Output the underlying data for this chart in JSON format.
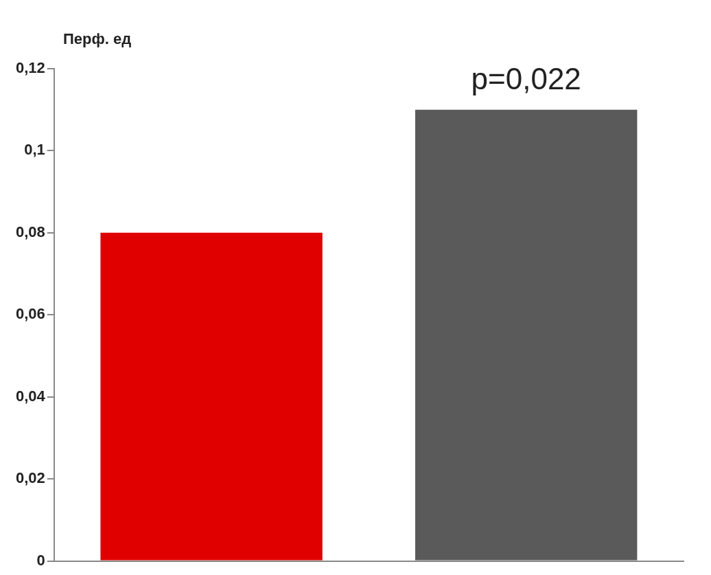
{
  "chart_data": {
    "type": "bar",
    "ylabel": "Перф. ед",
    "categories": [
      null,
      null
    ],
    "values": [
      0.08,
      0.11
    ],
    "colors": [
      "#e00000",
      "#5a5a5a"
    ],
    "ylim": [
      0,
      0.12
    ],
    "yticks": [
      0,
      {
        "value": 0.02,
        "label": "0,02"
      },
      {
        "value": 0.04,
        "label": "0,04"
      },
      {
        "value": 0.06,
        "label": "0,06"
      },
      {
        "value": 0.08,
        "label": "0,08"
      },
      {
        "value": 0.1,
        "label": "0,1"
      },
      {
        "value": 0.12,
        "label": "0,12"
      }
    ],
    "grid": false,
    "legend": false,
    "annotations": [
      "p=0,022"
    ]
  }
}
